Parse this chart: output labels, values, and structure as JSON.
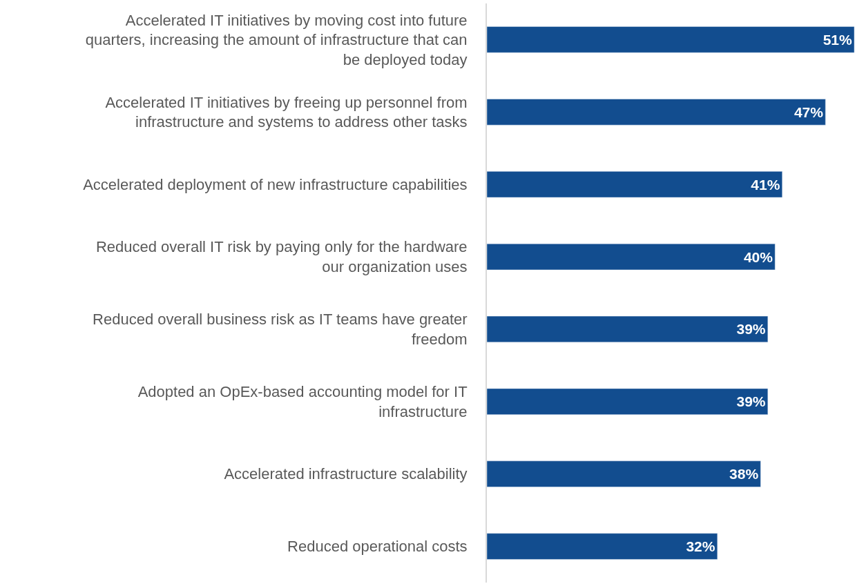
{
  "chart_data": {
    "type": "bar",
    "orientation": "horizontal",
    "categories": [
      "Accelerated IT initiatives by moving cost into future quarters, increasing the amount of infrastructure that can be deployed today",
      "Accelerated IT initiatives by freeing up personnel from infrastructure and systems to address other tasks",
      "Accelerated deployment of new infrastructure capabilities",
      "Reduced overall IT risk by paying only for the hardware our organization uses",
      "Reduced overall business risk as IT teams have greater freedom",
      "Adopted an OpEx-based accounting model for IT infrastructure",
      "Accelerated infrastructure scalability",
      "Reduced operational costs"
    ],
    "values": [
      51,
      47,
      41,
      40,
      39,
      39,
      38,
      32
    ],
    "value_labels": [
      "51%",
      "47%",
      "41%",
      "40%",
      "39%",
      "39%",
      "38%",
      "32%"
    ],
    "color": "#124d8f",
    "xlim": [
      0,
      51
    ],
    "tick_labels": "y",
    "legend": false
  }
}
